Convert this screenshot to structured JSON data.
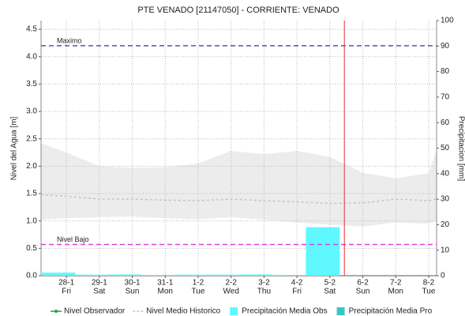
{
  "chart_data": {
    "type": "line",
    "title": "PTE VENADO [21147050] - CORRIENTE: VENADO",
    "ylabel": "Nivel del Agua [m]",
    "y2label": "Precipitacion [mm]",
    "xlim": [
      -0.77,
      11.24
    ],
    "xticks": [
      {
        "value": 0,
        "label": "28-1"
      },
      {
        "value": 1,
        "label": "29-1"
      },
      {
        "value": 2,
        "label": "30-1"
      },
      {
        "value": 3,
        "label": "31-1"
      },
      {
        "value": 4,
        "label": "1-2"
      },
      {
        "value": 5,
        "label": "2-2"
      },
      {
        "value": 6,
        "label": "3-2"
      },
      {
        "value": 7,
        "label": "4-2"
      },
      {
        "value": 8,
        "label": "5-2"
      },
      {
        "value": 9,
        "label": "6-2"
      },
      {
        "value": 10,
        "label": "7-2"
      },
      {
        "value": 11,
        "label": "8-2"
      }
    ],
    "xtick_weekdays": [
      "Fri",
      "Sat",
      "Sun",
      "Mon",
      "Tue",
      "Wed",
      "Thu",
      "Fri",
      "Sat",
      "Sun",
      "Mon",
      "Tue"
    ],
    "ylim": [
      0,
      4.66
    ],
    "yticks": [
      {
        "value": 0,
        "label": "0.0"
      },
      0.5,
      {
        "value": 1,
        "label": "1.0"
      },
      1.5,
      {
        "value": 2,
        "label": "2.0"
      },
      2.5,
      {
        "value": 3,
        "label": "3.0"
      },
      3.5,
      {
        "value": 4,
        "label": "4.0"
      },
      4.5
    ],
    "y2lim": [
      0,
      100
    ],
    "y2ticks": [
      0,
      10,
      20,
      30,
      40,
      50,
      60,
      70,
      80,
      90,
      100
    ],
    "grid": true,
    "band": {
      "color": "#ececec",
      "x": [
        -0.77,
        0,
        1,
        2,
        3,
        4,
        5,
        6,
        7,
        8,
        9,
        10,
        11,
        11.24
      ],
      "upper": [
        2.42,
        2.25,
        2.0,
        1.97,
        1.98,
        2.05,
        2.28,
        2.22,
        2.28,
        2.17,
        1.88,
        1.78,
        1.87,
        2.3
      ],
      "lower": [
        1.02,
        1.05,
        1.07,
        1.08,
        1.05,
        1.03,
        1.07,
        1.02,
        0.97,
        0.93,
        0.9,
        0.97,
        0.95,
        1.0
      ]
    },
    "series": [
      {
        "name": "Nivel Observador",
        "color": "#2e9e2e",
        "x": [],
        "values": []
      },
      {
        "name": "Nivel Medio Historico",
        "color": "#c4c4c4",
        "x": [
          -0.77,
          0,
          1,
          2,
          3,
          4,
          5,
          6,
          7,
          8,
          9,
          10,
          11,
          11.24
        ],
        "values": [
          1.48,
          1.45,
          1.4,
          1.4,
          1.38,
          1.37,
          1.4,
          1.37,
          1.35,
          1.32,
          1.33,
          1.4,
          1.37,
          1.4
        ]
      },
      {
        "name": "Precipitación Media Obs",
        "color": "#5ff8ff",
        "axis": "y2",
        "bins": [
          -0.77,
          0.27,
          1.27,
          2.27,
          3.27,
          4.27,
          5.27,
          6.27,
          7.27,
          8.3
        ],
        "values": [
          1.2,
          0.4,
          0.5,
          0.3,
          0.4,
          0.4,
          0.5,
          0.3,
          19
        ]
      },
      {
        "name": "Precipitación Media Pro",
        "color": "#3cc4c4",
        "axis": "y2",
        "bins": [],
        "values": []
      }
    ],
    "reference_lines": [
      {
        "label": "Maximo",
        "value": 4.2,
        "color": "#4a5a9c"
      },
      {
        "label": "Nivel Bajo",
        "value": 0.57,
        "color": "#e040e0"
      }
    ],
    "now_line": {
      "x": 8.44,
      "color": "#e83030"
    }
  }
}
